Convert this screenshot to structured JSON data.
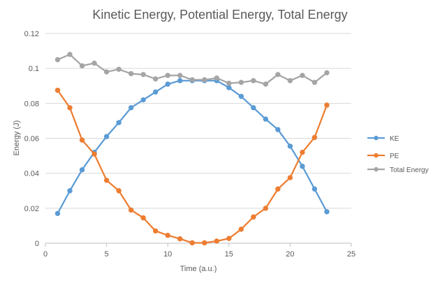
{
  "chart_data": {
    "type": "line",
    "title": "Kinetic Energy, Potential Energy, Total Energy",
    "xlabel": "Time (a.u.)",
    "ylabel": "Energy (J)",
    "xlim": [
      0,
      25
    ],
    "ylim": [
      0,
      0.12
    ],
    "x_ticks": [
      "0",
      "5",
      "10",
      "15",
      "20",
      "25"
    ],
    "y_ticks": [
      "0",
      "0.02",
      "0.04",
      "0.06",
      "0.08",
      "0.1",
      "0.12"
    ],
    "grid": "horizontal",
    "legend_position": "right",
    "x": [
      1,
      2,
      3,
      4,
      5,
      6,
      7,
      8,
      9,
      10,
      11,
      12,
      13,
      14,
      15,
      16,
      17,
      18,
      19,
      20,
      21,
      22,
      23
    ],
    "series": [
      {
        "name": "KE",
        "color": "#5B9BD5",
        "values": [
          0.017,
          0.03,
          0.042,
          0.052,
          0.061,
          0.069,
          0.0775,
          0.082,
          0.0865,
          0.091,
          0.093,
          0.093,
          0.093,
          0.093,
          0.089,
          0.084,
          0.0775,
          0.071,
          0.065,
          0.0555,
          0.044,
          0.031,
          0.018
        ]
      },
      {
        "name": "PE",
        "color": "#ED7D31",
        "values": [
          0.0875,
          0.0775,
          0.059,
          0.051,
          0.036,
          0.03,
          0.019,
          0.0145,
          0.007,
          0.0045,
          0.0025,
          0.0002,
          0.0002,
          0.0012,
          0.0027,
          0.008,
          0.015,
          0.02,
          0.031,
          0.0375,
          0.052,
          0.0605,
          0.079
        ]
      },
      {
        "name": "Total Energy",
        "color": "#A5A5A5",
        "values": [
          0.105,
          0.108,
          0.1015,
          0.103,
          0.098,
          0.0995,
          0.097,
          0.0965,
          0.094,
          0.096,
          0.096,
          0.0935,
          0.0935,
          0.0945,
          0.0915,
          0.092,
          0.093,
          0.091,
          0.0965,
          0.093,
          0.096,
          0.092,
          0.0975
        ]
      }
    ]
  }
}
